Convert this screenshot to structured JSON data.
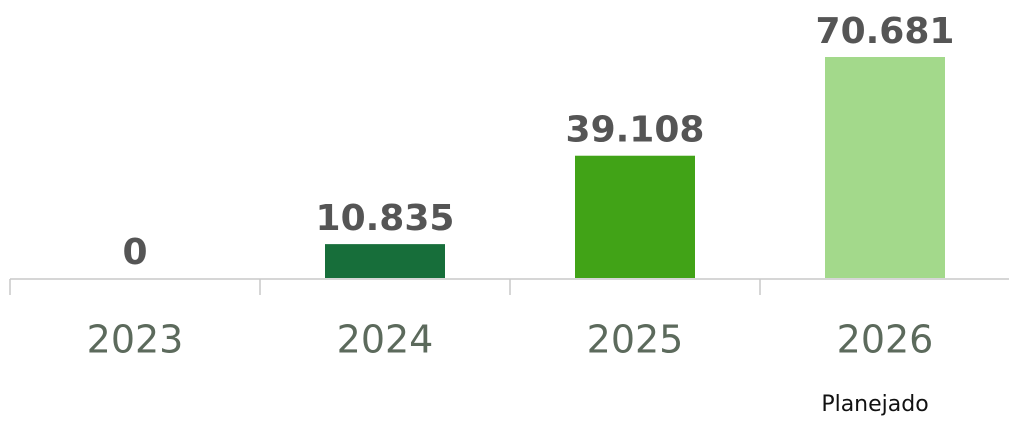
{
  "chart_data": {
    "type": "bar",
    "categories": [
      "2023",
      "2024",
      "2025",
      "2026"
    ],
    "values": [
      0,
      10835,
      39108,
      70681
    ],
    "value_labels": [
      "0",
      "10.835",
      "39.108",
      "70.681"
    ],
    "colors": [
      "#176e3a",
      "#176e3a",
      "#41a317",
      "#a3d98b"
    ],
    "annotation": "Planejado"
  }
}
